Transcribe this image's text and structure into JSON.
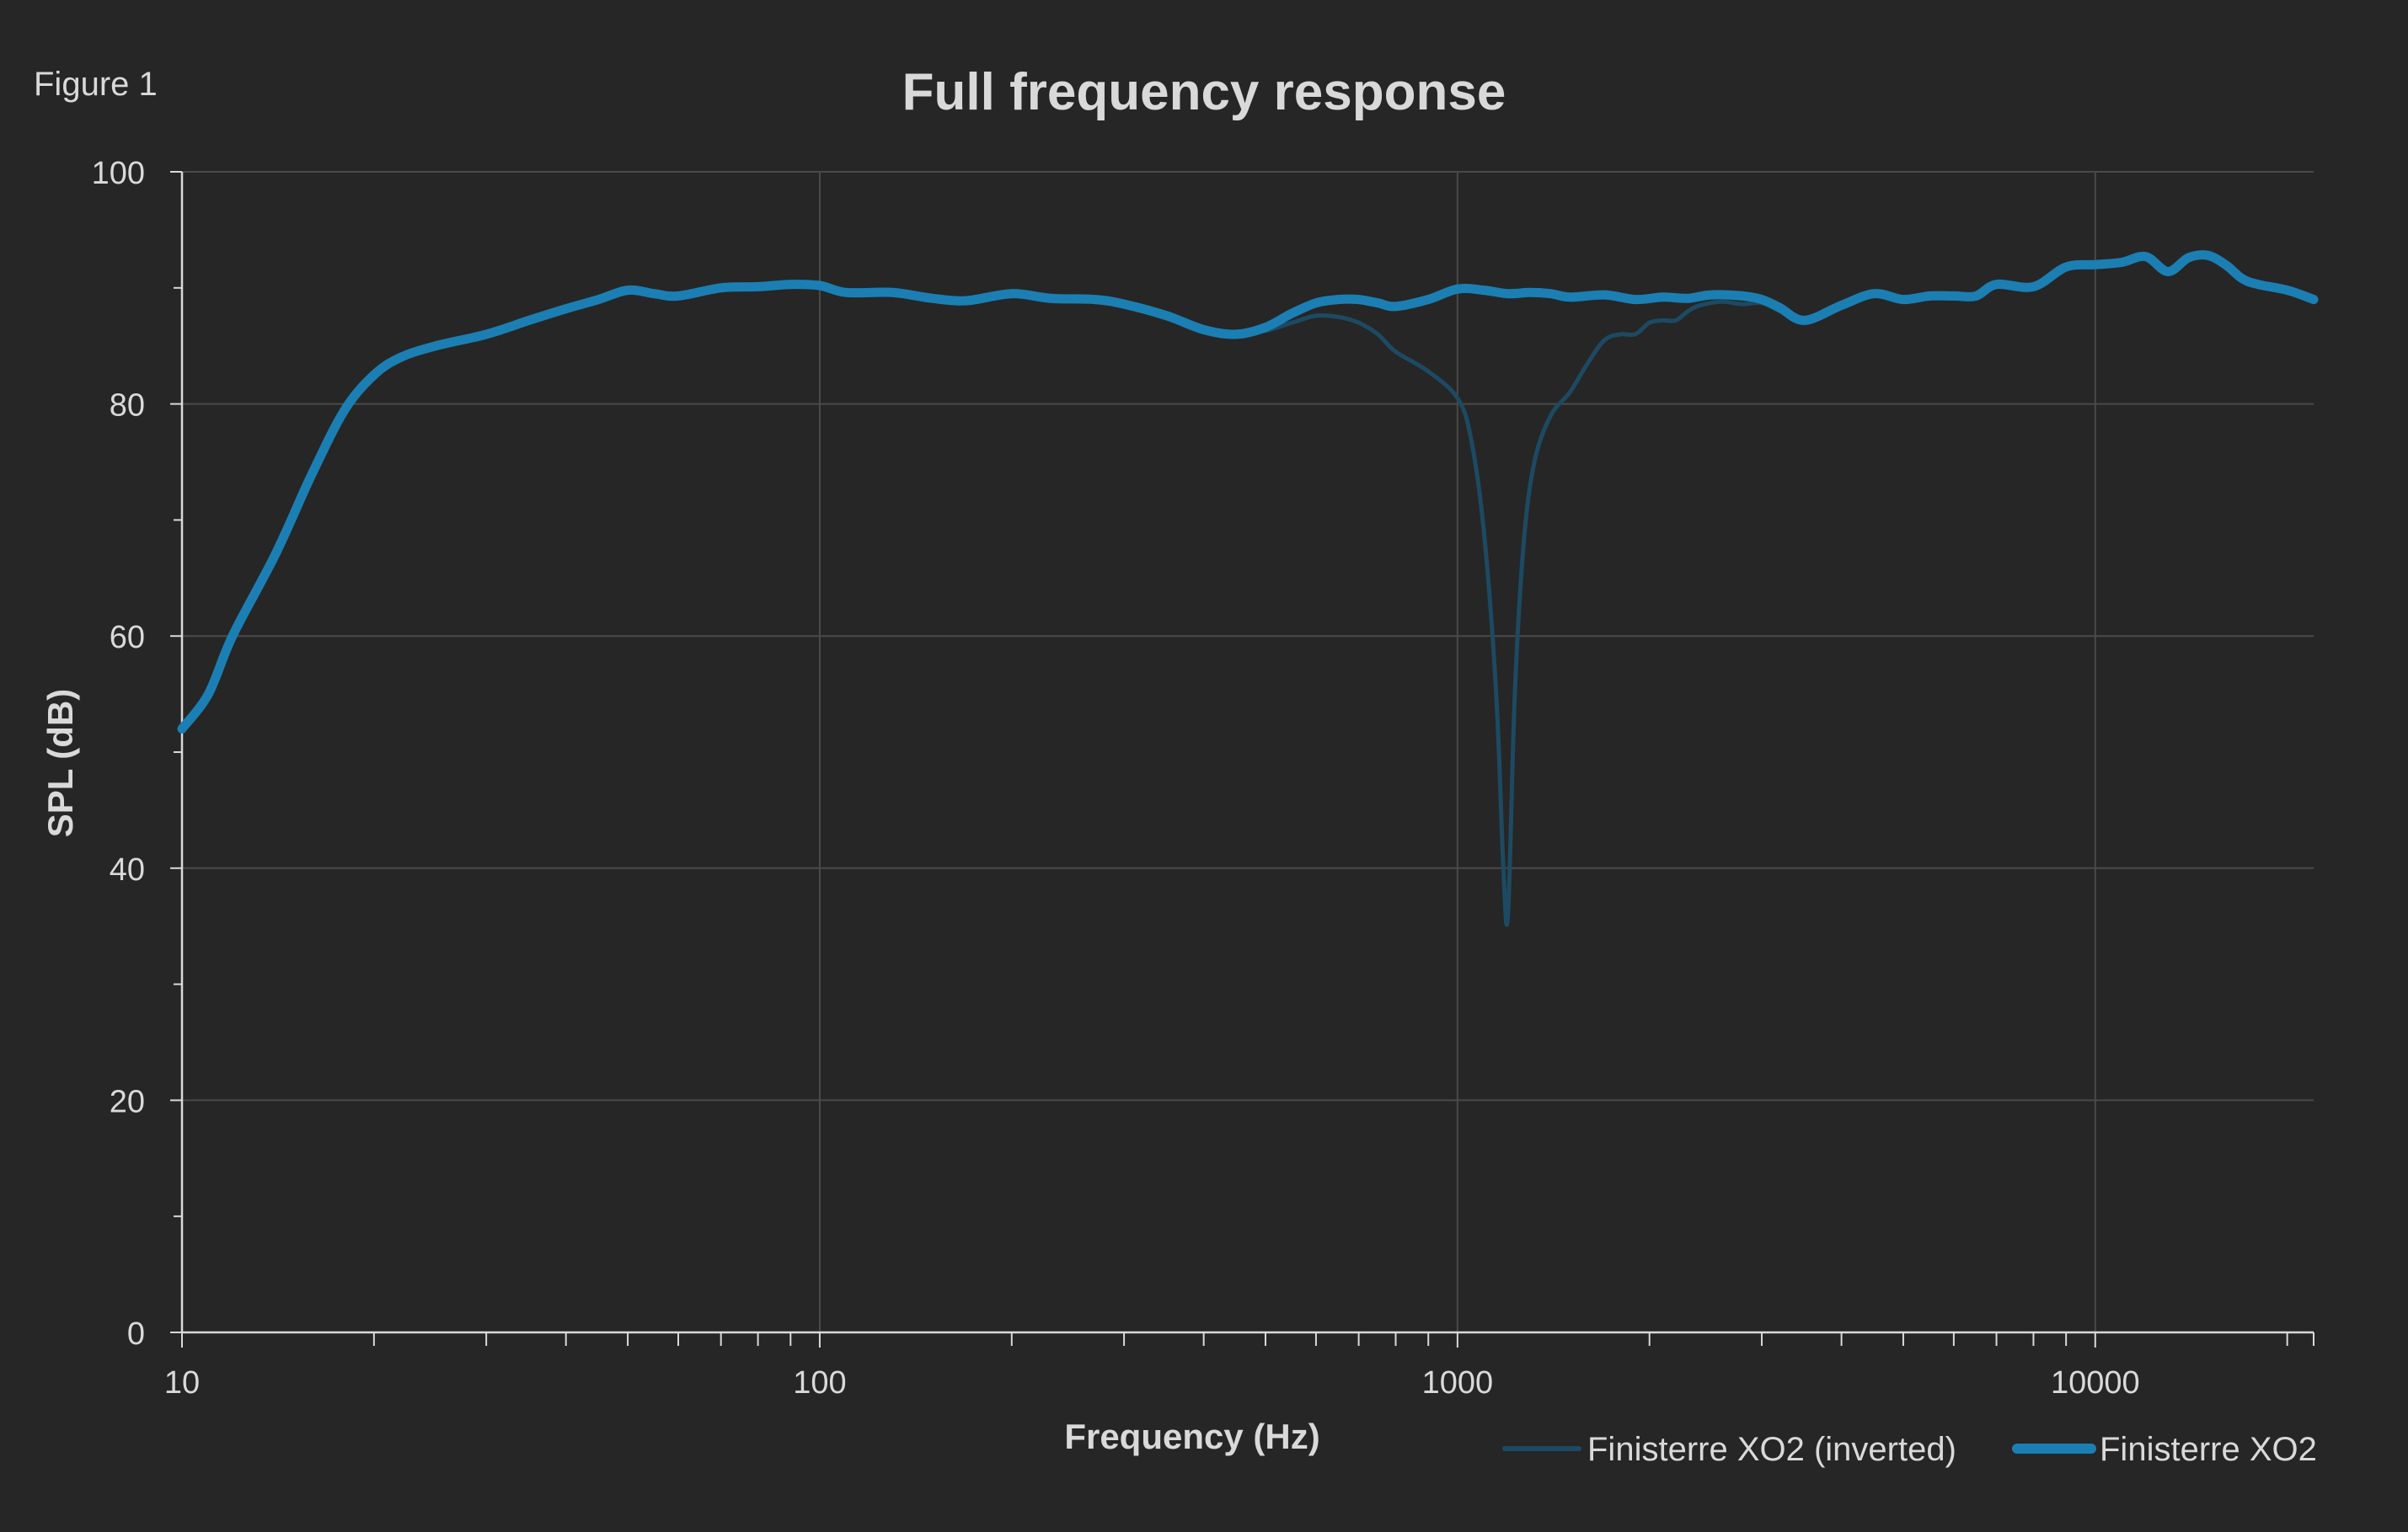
{
  "figure_label": "Figure 1",
  "colors": {
    "background": "#262626",
    "text": "#d9d9d9",
    "grid": "#4a4a4a",
    "axis": "#d9d9d9",
    "series_main": "#1b7fb3",
    "series_inverted": "#1d4a62"
  },
  "chart_data": {
    "type": "line",
    "title": "Full frequency response",
    "xlabel": "Frequency (Hz)",
    "ylabel": "SPL (dB)",
    "xscale": "log",
    "xlim": [
      10,
      22000
    ],
    "ylim": [
      0,
      100
    ],
    "x_ticks": [
      10,
      100,
      1000,
      10000
    ],
    "x_tick_labels": [
      "10",
      "100",
      "1000",
      "10000"
    ],
    "y_ticks": [
      0,
      20,
      40,
      60,
      80,
      100
    ],
    "y_tick_labels": [
      "0",
      "20",
      "40",
      "60",
      "80",
      "100"
    ],
    "grid": true,
    "legend_position": "bottom-right",
    "series": [
      {
        "name": "Finisterre XO2 (inverted)",
        "style": "thin",
        "points": [
          [
            10,
            52
          ],
          [
            11,
            55
          ],
          [
            12,
            60
          ],
          [
            14,
            67
          ],
          [
            16,
            74
          ],
          [
            18,
            79.5
          ],
          [
            20,
            82.5
          ],
          [
            22,
            84
          ],
          [
            25,
            85
          ],
          [
            30,
            86
          ],
          [
            35,
            87.2
          ],
          [
            40,
            88.2
          ],
          [
            45,
            89
          ],
          [
            50,
            89.8
          ],
          [
            55,
            89.5
          ],
          [
            60,
            89.3
          ],
          [
            70,
            90
          ],
          [
            80,
            90.1
          ],
          [
            90,
            90.3
          ],
          [
            100,
            90.2
          ],
          [
            110,
            89.6
          ],
          [
            130,
            89.6
          ],
          [
            150,
            89.1
          ],
          [
            170,
            88.9
          ],
          [
            200,
            89.5
          ],
          [
            230,
            89.1
          ],
          [
            270,
            89
          ],
          [
            300,
            88.6
          ],
          [
            350,
            87.6
          ],
          [
            400,
            86.4
          ],
          [
            450,
            86
          ],
          [
            500,
            86.3
          ],
          [
            550,
            87
          ],
          [
            600,
            87.6
          ],
          [
            650,
            87.5
          ],
          [
            700,
            87
          ],
          [
            750,
            86
          ],
          [
            800,
            84.5
          ],
          [
            900,
            82.8
          ],
          [
            1000,
            80.5
          ],
          [
            1050,
            77
          ],
          [
            1100,
            69
          ],
          [
            1150,
            55
          ],
          [
            1180,
            40
          ],
          [
            1200,
            36
          ],
          [
            1230,
            55
          ],
          [
            1270,
            68
          ],
          [
            1320,
            75
          ],
          [
            1400,
            79
          ],
          [
            1500,
            81
          ],
          [
            1600,
            83.5
          ],
          [
            1700,
            85.5
          ],
          [
            1800,
            86
          ],
          [
            1900,
            86
          ],
          [
            2000,
            87
          ],
          [
            2100,
            87.2
          ],
          [
            2200,
            87.2
          ],
          [
            2300,
            88
          ],
          [
            2400,
            88.5
          ],
          [
            2600,
            88.8
          ],
          [
            2800,
            88.6
          ],
          [
            3000,
            88.7
          ],
          [
            3200,
            88
          ],
          [
            3500,
            87
          ],
          [
            4000,
            88.5
          ],
          [
            4500,
            89.5
          ],
          [
            5000,
            89
          ],
          [
            5500,
            89.3
          ],
          [
            6000,
            89.3
          ],
          [
            6500,
            89.3
          ],
          [
            7000,
            90.3
          ],
          [
            8000,
            90.1
          ],
          [
            9000,
            91.8
          ],
          [
            10000,
            92
          ],
          [
            11000,
            92.2
          ],
          [
            12000,
            92.7
          ],
          [
            13000,
            91.4
          ],
          [
            14000,
            92.6
          ],
          [
            15000,
            92.8
          ],
          [
            16000,
            92
          ],
          [
            17000,
            90.8
          ],
          [
            18000,
            90.3
          ],
          [
            20000,
            89.8
          ],
          [
            22000,
            89
          ]
        ]
      },
      {
        "name": "Finisterre XO2",
        "style": "thick",
        "points": [
          [
            10,
            52
          ],
          [
            11,
            55
          ],
          [
            12,
            60
          ],
          [
            14,
            67
          ],
          [
            16,
            74
          ],
          [
            18,
            79.5
          ],
          [
            20,
            82.5
          ],
          [
            22,
            84
          ],
          [
            25,
            85
          ],
          [
            30,
            86
          ],
          [
            35,
            87.2
          ],
          [
            40,
            88.2
          ],
          [
            45,
            89
          ],
          [
            50,
            89.8
          ],
          [
            55,
            89.5
          ],
          [
            60,
            89.3
          ],
          [
            70,
            90
          ],
          [
            80,
            90.1
          ],
          [
            90,
            90.3
          ],
          [
            100,
            90.2
          ],
          [
            110,
            89.6
          ],
          [
            130,
            89.6
          ],
          [
            150,
            89.1
          ],
          [
            170,
            88.9
          ],
          [
            200,
            89.5
          ],
          [
            230,
            89.1
          ],
          [
            270,
            89
          ],
          [
            300,
            88.6
          ],
          [
            350,
            87.6
          ],
          [
            400,
            86.4
          ],
          [
            450,
            86
          ],
          [
            500,
            86.6
          ],
          [
            550,
            87.8
          ],
          [
            600,
            88.7
          ],
          [
            650,
            89
          ],
          [
            700,
            89
          ],
          [
            750,
            88.7
          ],
          [
            800,
            88.4
          ],
          [
            900,
            89
          ],
          [
            1000,
            89.9
          ],
          [
            1100,
            89.8
          ],
          [
            1200,
            89.5
          ],
          [
            1300,
            89.6
          ],
          [
            1400,
            89.5
          ],
          [
            1500,
            89.2
          ],
          [
            1700,
            89.4
          ],
          [
            1900,
            89.0
          ],
          [
            2100,
            89.2
          ],
          [
            2300,
            89.1
          ],
          [
            2500,
            89.4
          ],
          [
            2800,
            89.3
          ],
          [
            3000,
            89.0
          ],
          [
            3200,
            88.3
          ],
          [
            3500,
            87.2
          ],
          [
            4000,
            88.5
          ],
          [
            4500,
            89.5
          ],
          [
            5000,
            89
          ],
          [
            5500,
            89.3
          ],
          [
            6000,
            89.3
          ],
          [
            6500,
            89.3
          ],
          [
            7000,
            90.3
          ],
          [
            8000,
            90.1
          ],
          [
            9000,
            91.8
          ],
          [
            10000,
            92
          ],
          [
            11000,
            92.2
          ],
          [
            12000,
            92.7
          ],
          [
            13000,
            91.4
          ],
          [
            14000,
            92.6
          ],
          [
            15000,
            92.8
          ],
          [
            16000,
            92
          ],
          [
            17000,
            90.8
          ],
          [
            18000,
            90.3
          ],
          [
            20000,
            89.8
          ],
          [
            22000,
            89
          ]
        ]
      }
    ]
  }
}
